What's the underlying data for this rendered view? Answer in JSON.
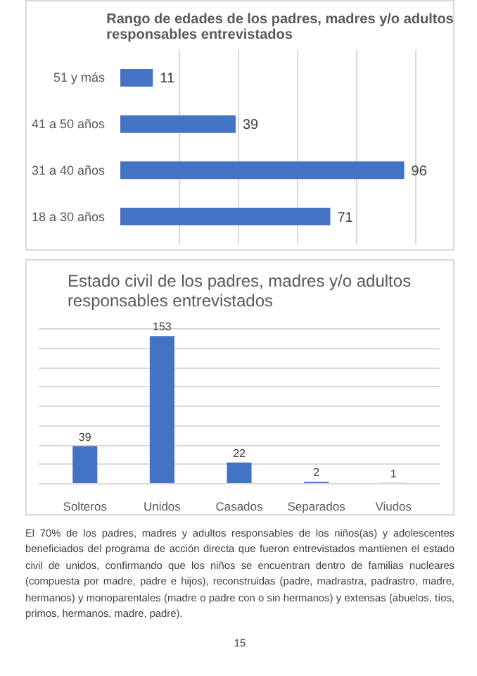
{
  "chart_data": [
    {
      "type": "bar",
      "orientation": "horizontal",
      "title": "Rango de edades de los padres, madres y/o adultos responsables entrevistados",
      "categories": [
        "51 y más",
        "41 a 50 años",
        "31 a 40 años",
        "18 a 30 años"
      ],
      "values": [
        11,
        39,
        96,
        71
      ],
      "color": "#4472c4",
      "tick_labels": "y",
      "grid": "x",
      "data_labels": true
    },
    {
      "type": "bar",
      "title": "Estado civil de los padres, madres y/o adultos responsables entrevistados",
      "categories": [
        "Solteros",
        "Unidos",
        "Casados",
        "Separados",
        "Viudos"
      ],
      "values": [
        39,
        153,
        22,
        2,
        1
      ],
      "color": "#4472c4",
      "tick_labels": "x",
      "grid": "y",
      "data_labels": true,
      "annotations": [
        "El 70% de los padres, madres y adultos responsables de los niños(as) y adolescentes beneficiados del programa de acción directa que fueron entrevistados mantienen el estado civil de unidos, confirmando que los niños se encuentran dentro de familias nucleares (compuesta por madre, padre e hijos), reconstruidas (padre, madrastra, padrastro, madre, hermanos) y monoparentales (madre o padre con o sin hermanos) y extensas (abuelos, tíos, primos, hermanos, madre, padre).",
        "15"
      ]
    }
  ]
}
